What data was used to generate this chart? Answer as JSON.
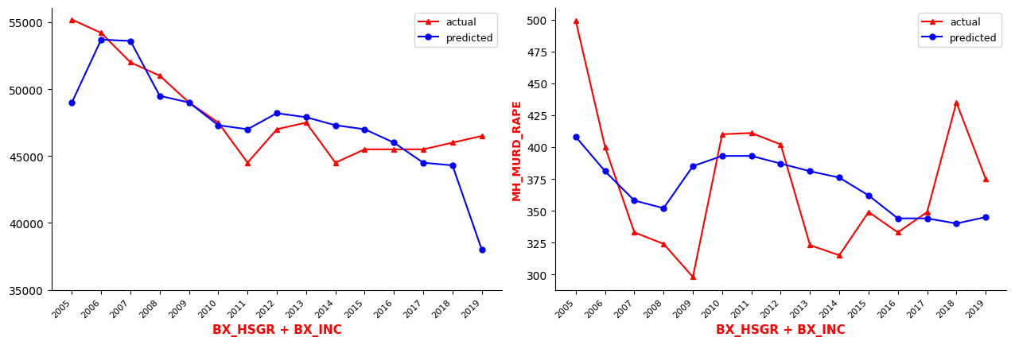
{
  "years": [
    2005,
    2006,
    2007,
    2008,
    2009,
    2010,
    2011,
    2012,
    2013,
    2014,
    2015,
    2016,
    2017,
    2018,
    2019
  ],
  "left": {
    "actual": [
      55200,
      54200,
      52000,
      51000,
      49000,
      47500,
      44500,
      47000,
      47500,
      44500,
      45500,
      45500,
      45500,
      46000,
      46500
    ],
    "predicted": [
      49000,
      53700,
      53600,
      49500,
      49000,
      47300,
      47000,
      48200,
      47900,
      47300,
      47000,
      46000,
      44500,
      44300,
      38000
    ],
    "ylabel": "",
    "yticks": [
      35000,
      40000,
      45000,
      50000,
      55000
    ]
  },
  "right": {
    "actual": [
      499,
      400,
      333,
      324,
      298,
      410,
      411,
      402,
      323,
      315,
      349,
      333,
      349,
      435,
      375
    ],
    "predicted": [
      408,
      381,
      358,
      352,
      385,
      393,
      393,
      387,
      381,
      376,
      362,
      344,
      344,
      340,
      345
    ],
    "ylabel": "MH_MURD_RAPE",
    "yticks": [
      300,
      325,
      350,
      375,
      400,
      425,
      450,
      475,
      500
    ]
  },
  "xlabel": "BX_HSGR + BX_INC",
  "legend_actual": "actual",
  "legend_predicted": "predicted",
  "actual_color": "#ff0000",
  "predicted_color": "#0000ff",
  "marker_actual": "^",
  "marker_predicted": "o",
  "xlabel_color": "#ff0000",
  "ylabel_color": "#ff0000"
}
